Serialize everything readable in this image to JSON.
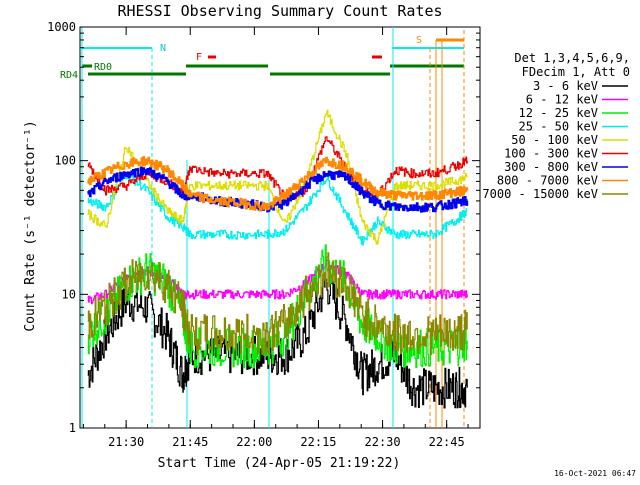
{
  "title": "RHESSI Observing Summary Count Rates",
  "ylabel": "Count Rate (s⁻¹ detector⁻¹)",
  "xlabel": "Start Time (24-Apr-05 21:19:22)",
  "footer_date": "16-Oct-2021 06:47",
  "legend": {
    "header1": "Det 1,3,4,5,6,9,",
    "header2": "FDecim 1, Att 0",
    "entries": [
      {
        "label": "3 - 6 keV",
        "color": "#000000"
      },
      {
        "label": "6 - 12 keV",
        "color": "#ff00ff"
      },
      {
        "label": "12 - 25 keV",
        "color": "#00ee00"
      },
      {
        "label": "25 - 50 keV",
        "color": "#00eeee"
      },
      {
        "label": "50 - 100 keV",
        "color": "#dddd00"
      },
      {
        "label": "100 - 300 keV",
        "color": "#ee0000"
      },
      {
        "label": "300 - 800 keV",
        "color": "#0000ee"
      },
      {
        "label": "800 - 7000 keV",
        "color": "#ff8800"
      },
      {
        "label": "7000 - 15000 keV",
        "color": "#888800"
      }
    ]
  },
  "flags": {
    "n_label": "N",
    "f_label": "F",
    "s_label": "S",
    "rd0_label": "RD0",
    "rd4_label": "RD4"
  },
  "chart_data": {
    "type": "line",
    "yscale": "log",
    "ylim": [
      1,
      1000
    ],
    "yticks": [
      1,
      10,
      100,
      1000
    ],
    "ytick_labels": [
      "1",
      "10",
      "100",
      "1000"
    ],
    "xlim": [
      21.32,
      22.88
    ],
    "xticks": [
      21.5,
      21.75,
      22.0,
      22.25,
      22.5,
      22.75
    ],
    "xtick_labels": [
      "21:30",
      "21:45",
      "22:00",
      "22:15",
      "22:30",
      "22:45"
    ],
    "series": [
      {
        "name": "3 - 6 keV",
        "color": "#000000",
        "x": [
          21.35,
          21.42,
          21.5,
          21.58,
          21.66,
          21.72,
          21.75,
          21.85,
          21.95,
          22.05,
          22.12,
          22.2,
          22.28,
          22.36,
          22.42,
          22.48,
          22.55,
          22.62,
          22.7,
          22.78,
          22.83
        ],
        "y": [
          2.5,
          5,
          9,
          8,
          5,
          2.5,
          3.5,
          3.5,
          3.5,
          3.5,
          3.5,
          5,
          12,
          6,
          2.5,
          3,
          3.5,
          2,
          2,
          2,
          2
        ]
      },
      {
        "name": "6 - 12 keV",
        "color": "#ff00ff",
        "x": [
          21.35,
          21.42,
          21.5,
          21.58,
          21.66,
          21.72,
          21.75,
          21.85,
          21.95,
          22.05,
          22.12,
          22.2,
          22.28,
          22.36,
          22.42,
          22.48,
          22.55,
          22.62,
          22.7,
          22.78,
          22.83
        ],
        "y": [
          9,
          10,
          14,
          15,
          13,
          10,
          10,
          10,
          10,
          10,
          10,
          12,
          17,
          14,
          10,
          10,
          10,
          10,
          10,
          10,
          10
        ]
      },
      {
        "name": "12 - 25 keV",
        "color": "#00ee00",
        "x": [
          21.35,
          21.42,
          21.5,
          21.58,
          21.66,
          21.72,
          21.75,
          21.85,
          21.95,
          22.05,
          22.12,
          22.2,
          22.28,
          22.36,
          22.42,
          22.48,
          22.55,
          22.62,
          22.7,
          22.78,
          22.83
        ],
        "y": [
          5,
          7,
          12,
          15,
          12,
          7,
          4,
          4,
          4,
          4,
          5,
          10,
          17,
          12,
          6,
          5,
          4,
          4,
          4,
          4,
          4.5
        ]
      },
      {
        "name": "25 - 50 keV",
        "color": "#00eeee",
        "x": [
          21.35,
          21.42,
          21.5,
          21.58,
          21.66,
          21.72,
          21.75,
          21.85,
          21.95,
          22.05,
          22.12,
          22.2,
          22.28,
          22.36,
          22.42,
          22.48,
          22.55,
          22.62,
          22.7,
          22.78,
          22.83
        ],
        "y": [
          50,
          45,
          80,
          60,
          38,
          32,
          28,
          28,
          28,
          28,
          30,
          45,
          75,
          40,
          25,
          35,
          28,
          28,
          28,
          35,
          42
        ]
      },
      {
        "name": "50 - 100 keV",
        "color": "#dddd00",
        "x": [
          21.35,
          21.42,
          21.5,
          21.58,
          21.66,
          21.72,
          21.75,
          21.85,
          21.95,
          22.05,
          22.12,
          22.2,
          22.28,
          22.36,
          22.42,
          22.48,
          22.55,
          22.62,
          22.7,
          22.78,
          22.83
        ],
        "y": [
          40,
          32,
          130,
          70,
          42,
          35,
          65,
          65,
          65,
          65,
          33,
          70,
          230,
          110,
          35,
          25,
          65,
          65,
          65,
          70,
          75
        ]
      },
      {
        "name": "100 - 300 keV",
        "color": "#ee0000",
        "x": [
          21.35,
          21.42,
          21.5,
          21.58,
          21.66,
          21.72,
          21.75,
          21.85,
          21.95,
          22.05,
          22.12,
          22.2,
          22.28,
          22.36,
          22.42,
          22.48,
          22.55,
          22.62,
          22.7,
          22.78,
          22.83
        ],
        "y": [
          95,
          60,
          65,
          80,
          70,
          58,
          88,
          80,
          80,
          80,
          52,
          60,
          150,
          85,
          60,
          55,
          85,
          80,
          80,
          90,
          100
        ]
      },
      {
        "name": "300 - 800 keV",
        "color": "#0000ee",
        "x": [
          21.35,
          21.42,
          21.5,
          21.58,
          21.66,
          21.72,
          21.75,
          21.85,
          21.95,
          22.05,
          22.12,
          22.2,
          22.28,
          22.36,
          22.42,
          22.48,
          22.55,
          22.62,
          22.7,
          22.78,
          22.83
        ],
        "y": [
          55,
          70,
          80,
          85,
          70,
          55,
          55,
          50,
          48,
          45,
          48,
          65,
          80,
          75,
          58,
          48,
          45,
          45,
          45,
          48,
          50
        ]
      },
      {
        "name": "800 - 7000 keV",
        "color": "#ff8800",
        "x": [
          21.35,
          21.42,
          21.5,
          21.58,
          21.66,
          21.72,
          21.75,
          21.85,
          21.95,
          22.05,
          22.12,
          22.2,
          22.28,
          22.36,
          22.42,
          22.48,
          22.55,
          22.62,
          22.7,
          22.78,
          22.83
        ],
        "y": [
          70,
          82,
          95,
          100,
          85,
          65,
          55,
          50,
          48,
          45,
          55,
          75,
          100,
          90,
          70,
          58,
          55,
          55,
          55,
          58,
          60
        ]
      },
      {
        "name": "7000 - 15000 keV",
        "color": "#888800",
        "x": [
          21.35,
          21.42,
          21.5,
          21.58,
          21.66,
          21.72,
          21.75,
          21.85,
          21.95,
          22.05,
          22.12,
          22.2,
          22.28,
          22.36,
          22.42,
          22.48,
          22.55,
          22.62,
          22.7,
          22.78,
          22.83
        ],
        "y": [
          6,
          8,
          12,
          15,
          12,
          8,
          5,
          5,
          5,
          5,
          6,
          10,
          15,
          12,
          7,
          6,
          5,
          5,
          5,
          5,
          5.5
        ]
      }
    ]
  }
}
